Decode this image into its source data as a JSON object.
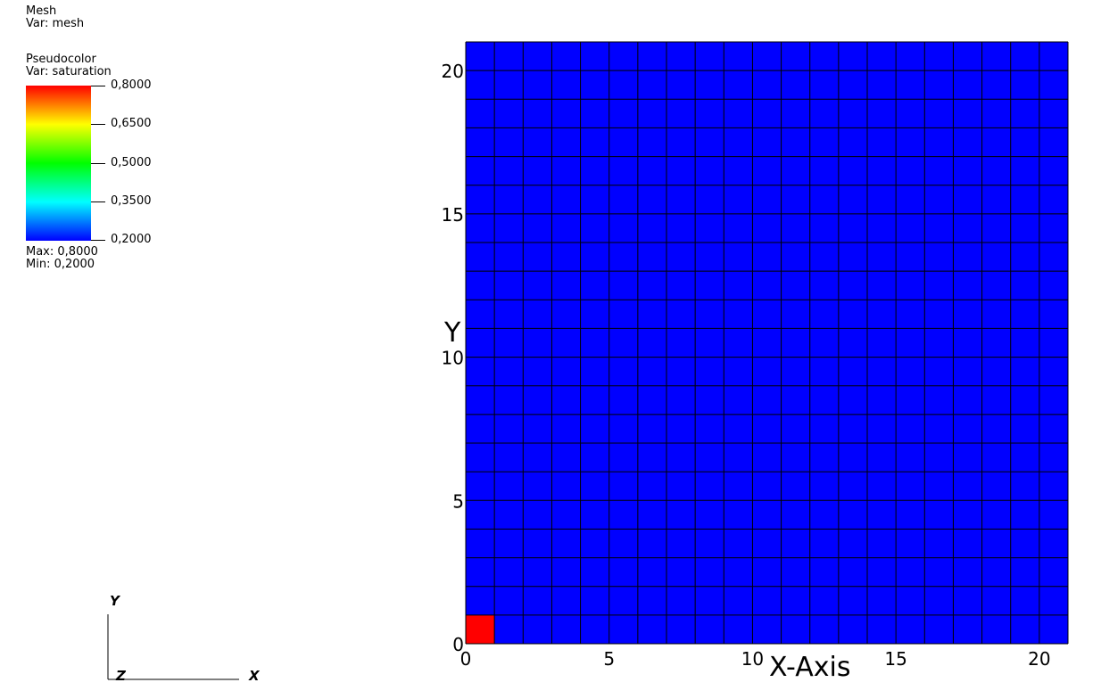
{
  "legend": {
    "mesh": {
      "title": "Mesh",
      "var": "Var: mesh"
    },
    "pseudocolor": {
      "title": "Pseudocolor",
      "var": "Var: saturation",
      "ticks": [
        "0,8000",
        "0,6500",
        "0,5000",
        "0,3500",
        "0,2000"
      ],
      "max": "Max:  0,8000",
      "min": "Min:  0,2000",
      "colors": [
        "#ff0000",
        "#ffff00",
        "#00ff00",
        "#00ffff",
        "#0000ff"
      ]
    }
  },
  "triad": {
    "x": "X",
    "y": "Y",
    "z": "Z"
  },
  "chart_data": {
    "type": "heatmap",
    "title": "",
    "xlabel": "X-Axis",
    "ylabel": "Y",
    "xlim": [
      0,
      21
    ],
    "ylim": [
      0,
      21
    ],
    "x_ticks": [
      0,
      5,
      10,
      15,
      20
    ],
    "y_ticks": [
      0,
      5,
      10,
      15,
      20
    ],
    "x_tick_labels": [
      "0",
      "5",
      "10",
      "15",
      "20"
    ],
    "y_tick_labels": [
      "0",
      "5",
      "10",
      "15",
      "20"
    ],
    "grid": {
      "nx": 21,
      "ny": 21,
      "cell_size": 1
    },
    "background_value": 0.2,
    "cells": [
      {
        "x": [
          0,
          1
        ],
        "y": [
          0,
          1
        ],
        "value": 0.8
      }
    ],
    "value_range": [
      0.2,
      0.8
    ],
    "low_color": "#0000ff",
    "high_color": "#ff0000",
    "mesh_line_color": "#000000"
  }
}
